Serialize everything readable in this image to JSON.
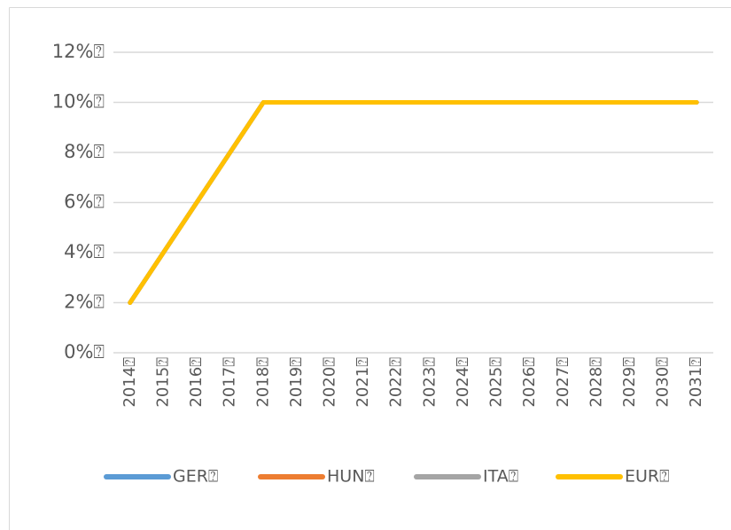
{
  "chart_data": {
    "type": "line",
    "categories": [
      "2014⍰",
      "2015⍰",
      "2016⍰",
      "2017⍰",
      "2018⍰",
      "2019⍰",
      "2020⍰",
      "2021⍰",
      "2022⍰",
      "2023⍰",
      "2024⍰",
      "2025⍰",
      "2026⍰",
      "2027⍰",
      "2028⍰",
      "2029⍰",
      "2030⍰",
      "2031⍰"
    ],
    "series": [
      {
        "name": "GER⍰",
        "color": "#5b9bd5",
        "values": [
          2,
          4,
          6,
          8,
          10,
          10,
          10,
          10,
          10,
          10,
          10,
          10,
          10,
          10,
          10,
          10,
          10,
          10
        ]
      },
      {
        "name": "HUN⍰",
        "color": "#ed7d31",
        "values": [
          2,
          4,
          6,
          8,
          10,
          10,
          10,
          10,
          10,
          10,
          10,
          10,
          10,
          10,
          10,
          10,
          10,
          10
        ]
      },
      {
        "name": "ITA⍰",
        "color": "#a5a5a5",
        "values": [
          2,
          4,
          6,
          8,
          10,
          10,
          10,
          10,
          10,
          10,
          10,
          10,
          10,
          10,
          10,
          10,
          10,
          10
        ]
      },
      {
        "name": "EUR⍰",
        "color": "#ffc000",
        "values": [
          2,
          4,
          6,
          8,
          10,
          10,
          10,
          10,
          10,
          10,
          10,
          10,
          10,
          10,
          10,
          10,
          10,
          10
        ]
      }
    ],
    "ylim": [
      0,
      12
    ],
    "yticks": [
      {
        "value": 0,
        "label": "0%⍰"
      },
      {
        "value": 2,
        "label": "2%⍰"
      },
      {
        "value": 4,
        "label": "4%⍰"
      },
      {
        "value": 6,
        "label": "6%⍰"
      },
      {
        "value": 8,
        "label": "8%⍰"
      },
      {
        "value": 10,
        "label": "10%⍰"
      },
      {
        "value": 12,
        "label": "12%⍰"
      }
    ],
    "grid": true,
    "legend": "bottom"
  }
}
